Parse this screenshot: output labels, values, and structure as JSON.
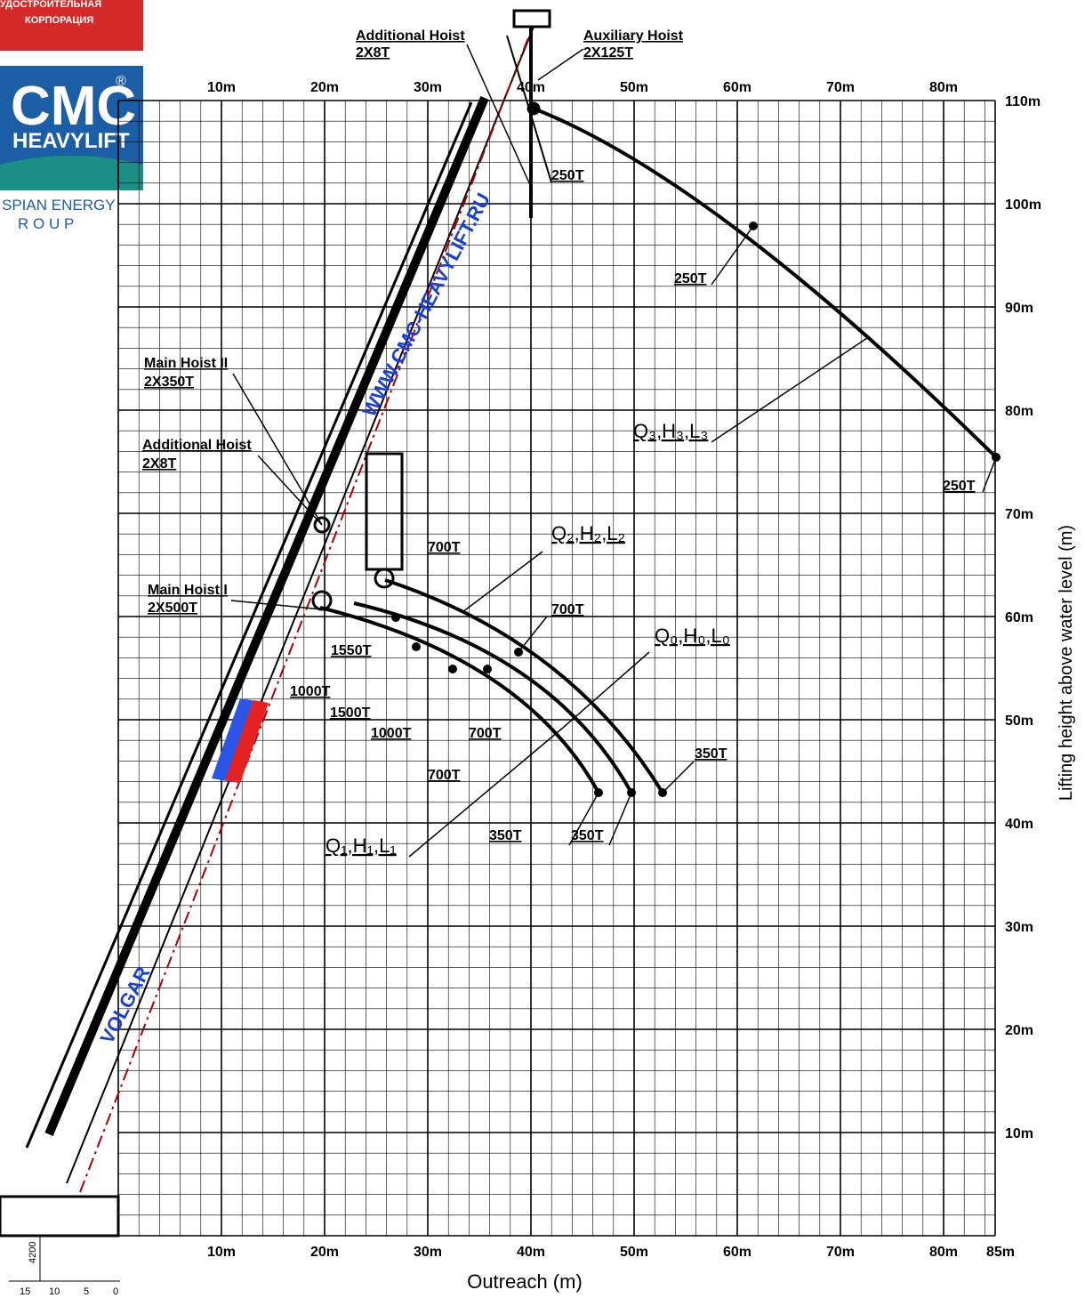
{
  "logo": {
    "line1": "УДОСТРОИТЕЛЬНАЯ",
    "line2": "КОРПОРАЦИЯ",
    "brand": "CMC",
    "reg": "®",
    "sub": "HEAVYLIFT",
    "group1": "SPIAN ENERGY",
    "group2": "R O U P"
  },
  "axes": {
    "top_labels": [
      "10m",
      "20m",
      "30m",
      "40m",
      "50m",
      "60m",
      "70m",
      "80m"
    ],
    "bottom_labels": [
      "10m",
      "20m",
      "30m",
      "40m",
      "50m",
      "60m",
      "70m",
      "80m",
      "85m"
    ],
    "right_labels": [
      "110m",
      "100m",
      "90m",
      "80m",
      "70m",
      "60m",
      "50m",
      "40m",
      "30m",
      "20m",
      "10m"
    ],
    "x_title": "Outreach (m)",
    "y_title": "Lifting height above water level (m)"
  },
  "callouts": [
    "Additional Hoist",
    "2X8T",
    "Auxiliary Hoist",
    "2X125T",
    "250T",
    "250T",
    "Q₃,H₃,L₃",
    "250T",
    "Main Hoist II",
    "2X350T",
    "Additional Hoist",
    "2X8T",
    "700T",
    "Q₂,H₂,L₂",
    "700T",
    "Q₀,H₀,L₀",
    "Main Hoist I",
    "2X500T",
    "1550T",
    "1000T",
    "1500T",
    "1000T",
    "700T",
    "700T",
    "350T",
    "350T",
    "350T",
    "Q₁,H₁,L₁"
  ],
  "watermarks": [
    "WWW.CMC-HEAVYLIFT.RU",
    "VOLGAR"
  ],
  "scale": [
    "4200",
    "15",
    "10",
    "5",
    "0"
  ]
}
